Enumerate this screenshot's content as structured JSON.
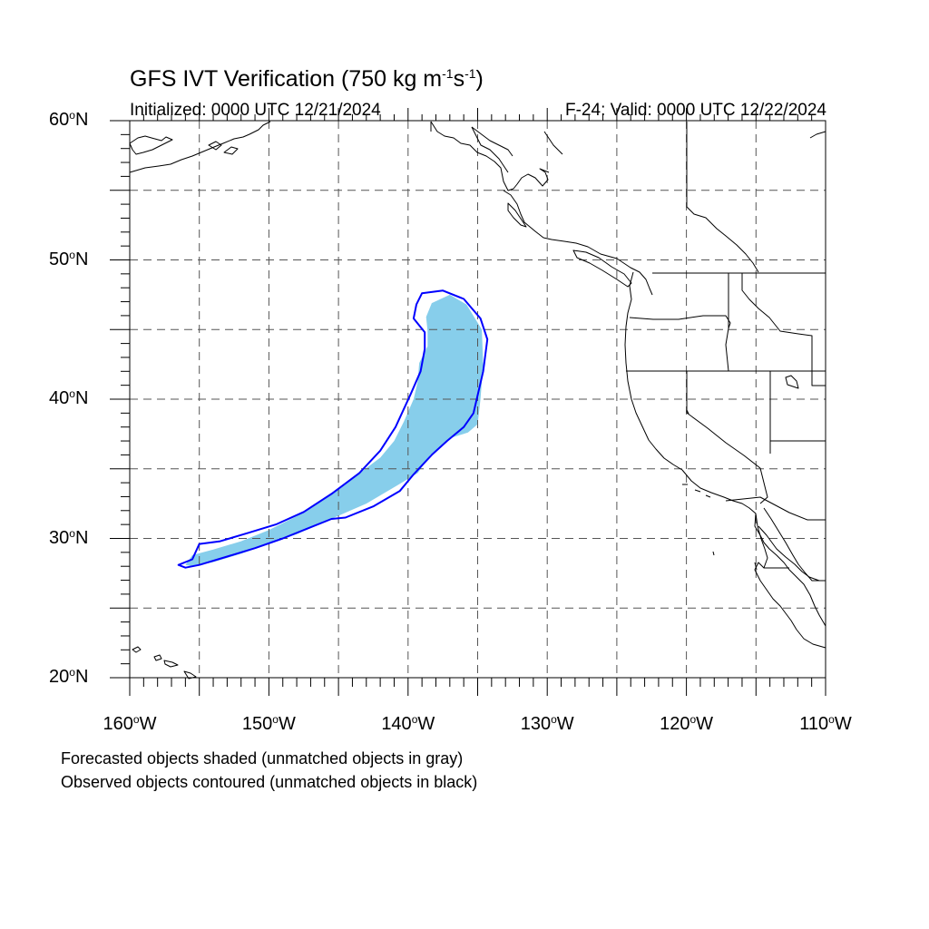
{
  "title": {
    "prefix": "GFS IVT Verification (750 kg m",
    "exp1": "-1",
    "mid": "s",
    "exp2": "-1",
    "suffix": ")"
  },
  "initialized": "Initialized: 0000 UTC 12/21/2024",
  "valid": "F-24: Valid: 0000 UTC 12/22/2024",
  "lat_labels": [
    {
      "value": 60,
      "text": "60",
      "suffix": "N"
    },
    {
      "value": 50,
      "text": "50",
      "suffix": "N"
    },
    {
      "value": 40,
      "text": "40",
      "suffix": "N"
    },
    {
      "value": 30,
      "text": "30",
      "suffix": "N"
    },
    {
      "value": 20,
      "text": "20",
      "suffix": "N"
    }
  ],
  "lon_labels": [
    {
      "value": -160,
      "text": "160",
      "suffix": "W"
    },
    {
      "value": -150,
      "text": "150",
      "suffix": "W"
    },
    {
      "value": -140,
      "text": "140",
      "suffix": "W"
    },
    {
      "value": -130,
      "text": "130",
      "suffix": "W"
    },
    {
      "value": -120,
      "text": "120",
      "suffix": "W"
    },
    {
      "value": -110,
      "text": "110",
      "suffix": "W"
    }
  ],
  "captions": {
    "forecast": "Forecasted objects shaded (unmatched objects in gray)",
    "observed": "Observed objects contoured (unmatched objects in black)"
  },
  "map_extent": {
    "lon_min": -160,
    "lon_max": -110,
    "lat_min": 20,
    "lat_max": 60
  },
  "colors": {
    "forecast_fill": "#87ceeb",
    "observed_contour": "#0000ff",
    "grid": "#555555",
    "coastline": "#000000"
  },
  "forecast_object": [
    [
      -156.0,
      28.1
    ],
    [
      -155.5,
      28.8
    ],
    [
      -154.0,
      29.2
    ],
    [
      -152.0,
      29.8
    ],
    [
      -150.0,
      30.6
    ],
    [
      -148.0,
      31.6
    ],
    [
      -146.0,
      32.8
    ],
    [
      -144.0,
      34.3
    ],
    [
      -142.0,
      35.8
    ],
    [
      -141.0,
      37.0
    ],
    [
      -140.3,
      38.4
    ],
    [
      -139.6,
      40.0
    ],
    [
      -139.3,
      41.3
    ],
    [
      -139.2,
      42.6
    ],
    [
      -138.6,
      43.8
    ],
    [
      -138.6,
      44.9
    ],
    [
      -138.7,
      45.9
    ],
    [
      -138.3,
      46.9
    ],
    [
      -137.0,
      47.5
    ],
    [
      -135.8,
      46.8
    ],
    [
      -134.7,
      45.0
    ],
    [
      -134.6,
      42.5
    ],
    [
      -134.8,
      40.0
    ],
    [
      -135.0,
      38.2
    ],
    [
      -135.7,
      37.6
    ],
    [
      -137.0,
      37.2
    ],
    [
      -138.4,
      36.0
    ],
    [
      -139.3,
      34.7
    ],
    [
      -140.8,
      33.8
    ],
    [
      -143.0,
      32.5
    ],
    [
      -146.0,
      31.2
    ],
    [
      -148.0,
      30.3
    ],
    [
      -150.0,
      29.6
    ],
    [
      -152.0,
      28.9
    ],
    [
      -154.0,
      28.3
    ],
    [
      -155.5,
      28.0
    ]
  ],
  "observed_object": [
    [
      -156.5,
      28.1
    ],
    [
      -155.5,
      28.5
    ],
    [
      -155.0,
      29.6
    ],
    [
      -153.5,
      29.8
    ],
    [
      -151.5,
      30.4
    ],
    [
      -149.5,
      31.0
    ],
    [
      -147.5,
      31.9
    ],
    [
      -145.5,
      33.2
    ],
    [
      -143.5,
      34.7
    ],
    [
      -142.0,
      36.3
    ],
    [
      -140.9,
      38.0
    ],
    [
      -139.8,
      40.4
    ],
    [
      -139.1,
      42.0
    ],
    [
      -138.8,
      43.6
    ],
    [
      -138.8,
      44.8
    ],
    [
      -139.6,
      45.8
    ],
    [
      -139.4,
      46.8
    ],
    [
      -139.0,
      47.6
    ],
    [
      -137.5,
      47.8
    ],
    [
      -136.0,
      47.2
    ],
    [
      -134.8,
      45.8
    ],
    [
      -134.3,
      44.3
    ],
    [
      -134.6,
      42.0
    ],
    [
      -135.3,
      39.0
    ],
    [
      -136.0,
      38.0
    ],
    [
      -137.2,
      37.0
    ],
    [
      -138.3,
      36.0
    ],
    [
      -139.6,
      34.6
    ],
    [
      -140.6,
      33.4
    ],
    [
      -142.5,
      32.3
    ],
    [
      -144.5,
      31.5
    ],
    [
      -145.5,
      31.4
    ],
    [
      -147.0,
      30.8
    ],
    [
      -149.0,
      30.0
    ],
    [
      -151.0,
      29.3
    ],
    [
      -153.0,
      28.7
    ],
    [
      -155.0,
      28.1
    ],
    [
      -156.0,
      27.9
    ]
  ]
}
